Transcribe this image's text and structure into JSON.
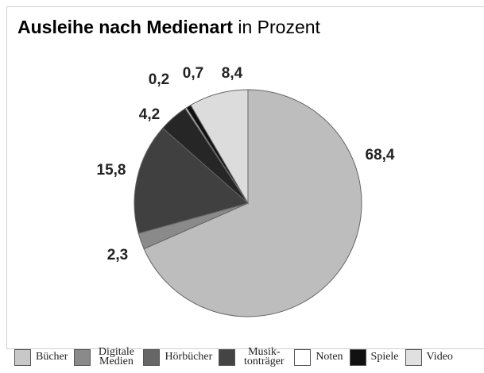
{
  "chart_data": {
    "type": "pie",
    "title": "Ausleihe nach Medienart",
    "subtitle": "in Prozent",
    "categories": [
      "Bücher",
      "Digitale Medien",
      "Hörbücher",
      "Musik-tonträger",
      "Noten",
      "Spiele",
      "Video"
    ],
    "values": [
      68.4,
      2.3,
      15.8,
      4.2,
      0.2,
      0.7,
      8.4
    ],
    "value_labels": [
      "68,4",
      "2,3",
      "15,8",
      "4,2",
      "0,2",
      "0,7",
      "8,4"
    ],
    "colors": [
      "#bdbdbd",
      "#8a8a8a",
      "#404040",
      "#262626",
      "#ffffff",
      "#111111",
      "#dcdcdc"
    ],
    "legend": "bottom"
  }
}
